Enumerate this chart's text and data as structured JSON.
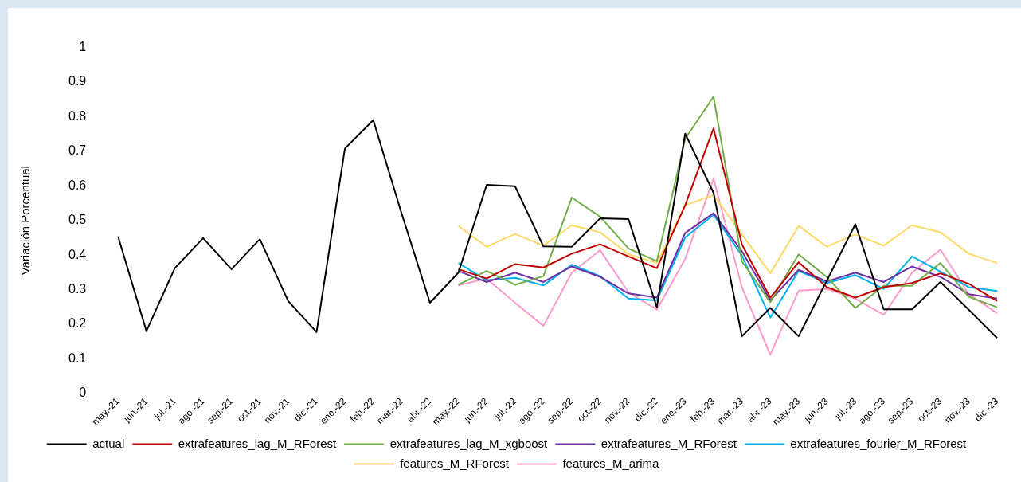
{
  "chart_data": {
    "type": "line",
    "ylabel": "Variación Porcentual",
    "categories": [
      "may.-21",
      "jun.-21",
      "jul.-21",
      "ago.-21",
      "sep.-21",
      "oct.-21",
      "nov.-21",
      "dic.-21",
      "ene.-22",
      "feb.-22",
      "mar.-22",
      "abr.-22",
      "may.-22",
      "jun.-22",
      "jul.-22",
      "ago.-22",
      "sep.-22",
      "oct.-22",
      "nov.-22",
      "dic.-22",
      "ene.-23",
      "feb.-23",
      "mar.-23",
      "abr.-23",
      "may.-23",
      "jun.-23",
      "jul.-23",
      "ago.-23",
      "sep.-23",
      "oct.-23",
      "nov.-23",
      "dic.-23"
    ],
    "series": [
      {
        "name": "actual",
        "color": "#000000",
        "values": [
          0.454,
          0.18,
          0.362,
          0.449,
          0.359,
          0.446,
          0.267,
          0.177,
          0.708,
          0.79,
          0.52,
          0.262,
          0.349,
          0.603,
          0.599,
          0.425,
          0.424,
          0.506,
          0.504,
          0.249,
          0.751,
          0.58,
          0.165,
          0.247,
          0.165,
          0.327,
          0.489,
          0.243,
          0.243,
          0.322,
          0.242,
          0.16
        ]
      },
      {
        "name": "extrafeatures_lag_M_RForest",
        "color": "#c00000",
        "values": [
          null,
          null,
          null,
          null,
          null,
          null,
          null,
          null,
          null,
          null,
          null,
          null,
          0.359,
          0.332,
          0.374,
          0.364,
          0.404,
          0.431,
          0.396,
          0.362,
          0.544,
          0.766,
          0.431,
          0.277,
          0.379,
          0.307,
          0.277,
          0.307,
          0.319,
          0.347,
          0.317,
          0.267
        ]
      },
      {
        "name": "extrafeatures_lag_M_xgboost",
        "color": "#70ad47",
        "values": [
          null,
          null,
          null,
          null,
          null,
          null,
          null,
          null,
          null,
          null,
          null,
          null,
          0.314,
          0.354,
          0.314,
          0.339,
          0.566,
          0.511,
          0.419,
          0.382,
          0.736,
          0.858,
          0.382,
          0.264,
          0.402,
          0.336,
          0.247,
          0.311,
          0.311,
          0.377,
          0.279,
          0.249
        ]
      },
      {
        "name": "extrafeatures_M_RForest",
        "color": "#7030a0",
        "values": [
          null,
          null,
          null,
          null,
          null,
          null,
          null,
          null,
          null,
          null,
          null,
          null,
          0.354,
          0.322,
          0.349,
          0.322,
          0.367,
          0.337,
          0.289,
          0.277,
          0.464,
          0.521,
          0.411,
          0.269,
          0.357,
          0.324,
          0.349,
          0.322,
          0.367,
          0.337,
          0.287,
          0.274
        ]
      },
      {
        "name": "extrafeatures_fourier_M_RForest",
        "color": "#00b0f0",
        "values": [
          null,
          null,
          null,
          null,
          null,
          null,
          null,
          null,
          null,
          null,
          null,
          null,
          0.377,
          0.327,
          0.334,
          0.312,
          0.372,
          0.339,
          0.274,
          0.269,
          0.451,
          0.516,
          0.399,
          0.219,
          0.354,
          0.319,
          0.342,
          0.302,
          0.396,
          0.352,
          0.307,
          0.296
        ]
      },
      {
        "name": "features_M_RForest",
        "color": "#ffd966",
        "values": [
          null,
          null,
          null,
          null,
          null,
          null,
          null,
          null,
          null,
          null,
          null,
          null,
          0.484,
          0.424,
          0.461,
          0.427,
          0.486,
          0.466,
          0.402,
          0.377,
          0.544,
          0.574,
          0.46,
          0.347,
          0.484,
          0.424,
          0.46,
          0.427,
          0.486,
          0.466,
          0.404,
          0.377
        ]
      },
      {
        "name": "features_M_arima",
        "color": "#ff99cc",
        "values": [
          null,
          null,
          null,
          null,
          null,
          null,
          null,
          null,
          null,
          null,
          null,
          null,
          0.312,
          0.332,
          0.262,
          0.195,
          0.349,
          0.414,
          0.292,
          0.242,
          0.389,
          0.621,
          0.307,
          0.112,
          0.297,
          0.302,
          0.274,
          0.227,
          0.349,
          0.416,
          0.287,
          0.232
        ]
      }
    ],
    "ylim": [
      0,
      1
    ],
    "yticks": [
      0,
      0.1,
      0.2,
      0.3,
      0.4,
      0.5,
      0.6,
      0.7,
      0.8,
      0.9,
      1
    ],
    "grid": false,
    "legend": "bottom",
    "marker": "none",
    "line_style": "solid"
  }
}
